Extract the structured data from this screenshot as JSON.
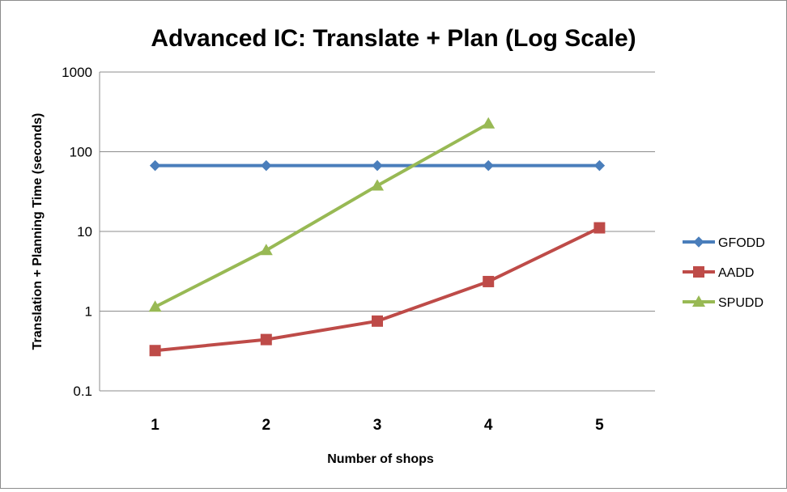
{
  "chart_data": {
    "type": "line",
    "title": "Advanced IC: Translate + Plan (Log Scale)",
    "xlabel": "Number of shops",
    "ylabel": "Translation + Planning Time (seconds)",
    "x": [
      1,
      2,
      3,
      4,
      5
    ],
    "x_tick_labels": [
      "1",
      "2",
      "3",
      "4",
      "5"
    ],
    "yscale": "log",
    "ylim": [
      0.1,
      1000
    ],
    "y_tick_labels": [
      "0.1",
      "1",
      "10",
      "100",
      "1000"
    ],
    "grid": "horizontal",
    "legend_position": "right",
    "series": [
      {
        "name": "GFODD",
        "color": "#4a7ebb",
        "marker": "diamond",
        "values": [
          67,
          67,
          67,
          67,
          67
        ]
      },
      {
        "name": "AADD",
        "color": "#be4b48",
        "marker": "square",
        "values": [
          0.32,
          0.44,
          0.75,
          2.35,
          11.1
        ]
      },
      {
        "name": "SPUDD",
        "color": "#98b954",
        "marker": "triangle",
        "values": [
          1.13,
          5.8,
          37.5,
          225,
          null
        ]
      }
    ]
  }
}
